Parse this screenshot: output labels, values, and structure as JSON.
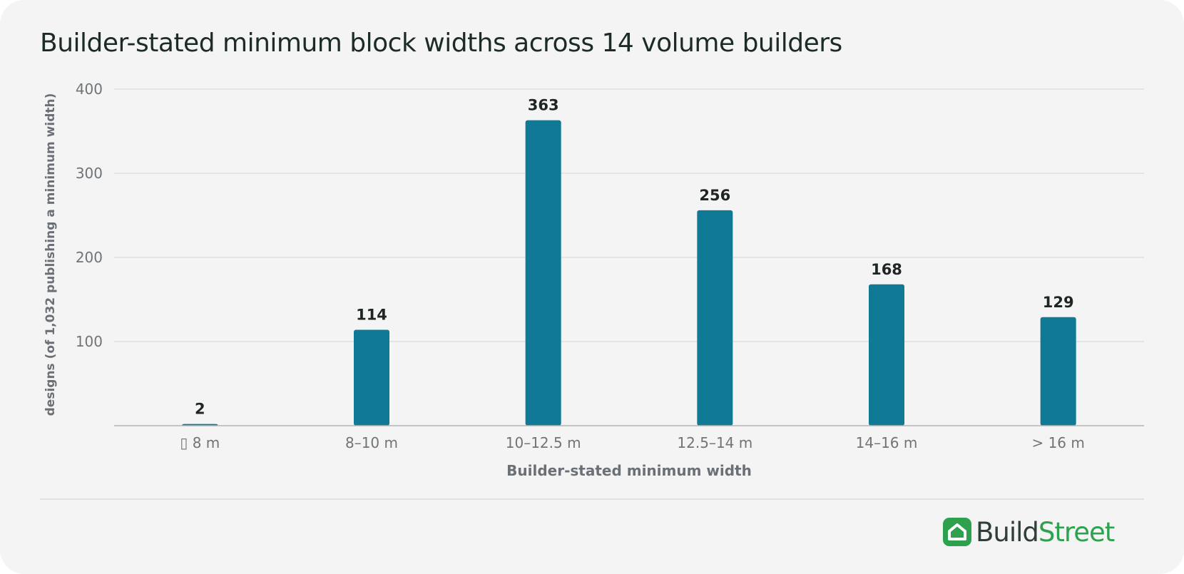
{
  "title": "Builder-stated minimum block widths across 14 volume builders",
  "brand": {
    "part1": "Build",
    "part2": "Street",
    "icon": "house-icon",
    "color": "#2ea14e"
  },
  "colors": {
    "bar": "#107996",
    "grid": "#dedede",
    "axis": "#b4b4b4",
    "tick_text": "#6f7478",
    "label_text": "#1f2622",
    "axis_title": "#6a7076"
  },
  "chart_data": {
    "type": "bar",
    "title": "Builder-stated minimum block widths across 14 volume builders",
    "xlabel": "Builder-stated minimum width",
    "ylabel": "designs (of 1,032 publishing a minimum width)",
    "categories": [
      "▯ 8 m",
      "8–10 m",
      "10–12.5 m",
      "12.5–14 m",
      "14–16 m",
      "> 16 m"
    ],
    "values": [
      2,
      114,
      363,
      256,
      168,
      129
    ],
    "data_labels": [
      "2",
      "114",
      "363",
      "256",
      "168",
      "129"
    ],
    "ylim": [
      0,
      400
    ],
    "yticks": [
      100,
      200,
      300,
      400
    ],
    "ytick_labels": [
      "100",
      "200",
      "300",
      "400"
    ],
    "grid": true
  }
}
